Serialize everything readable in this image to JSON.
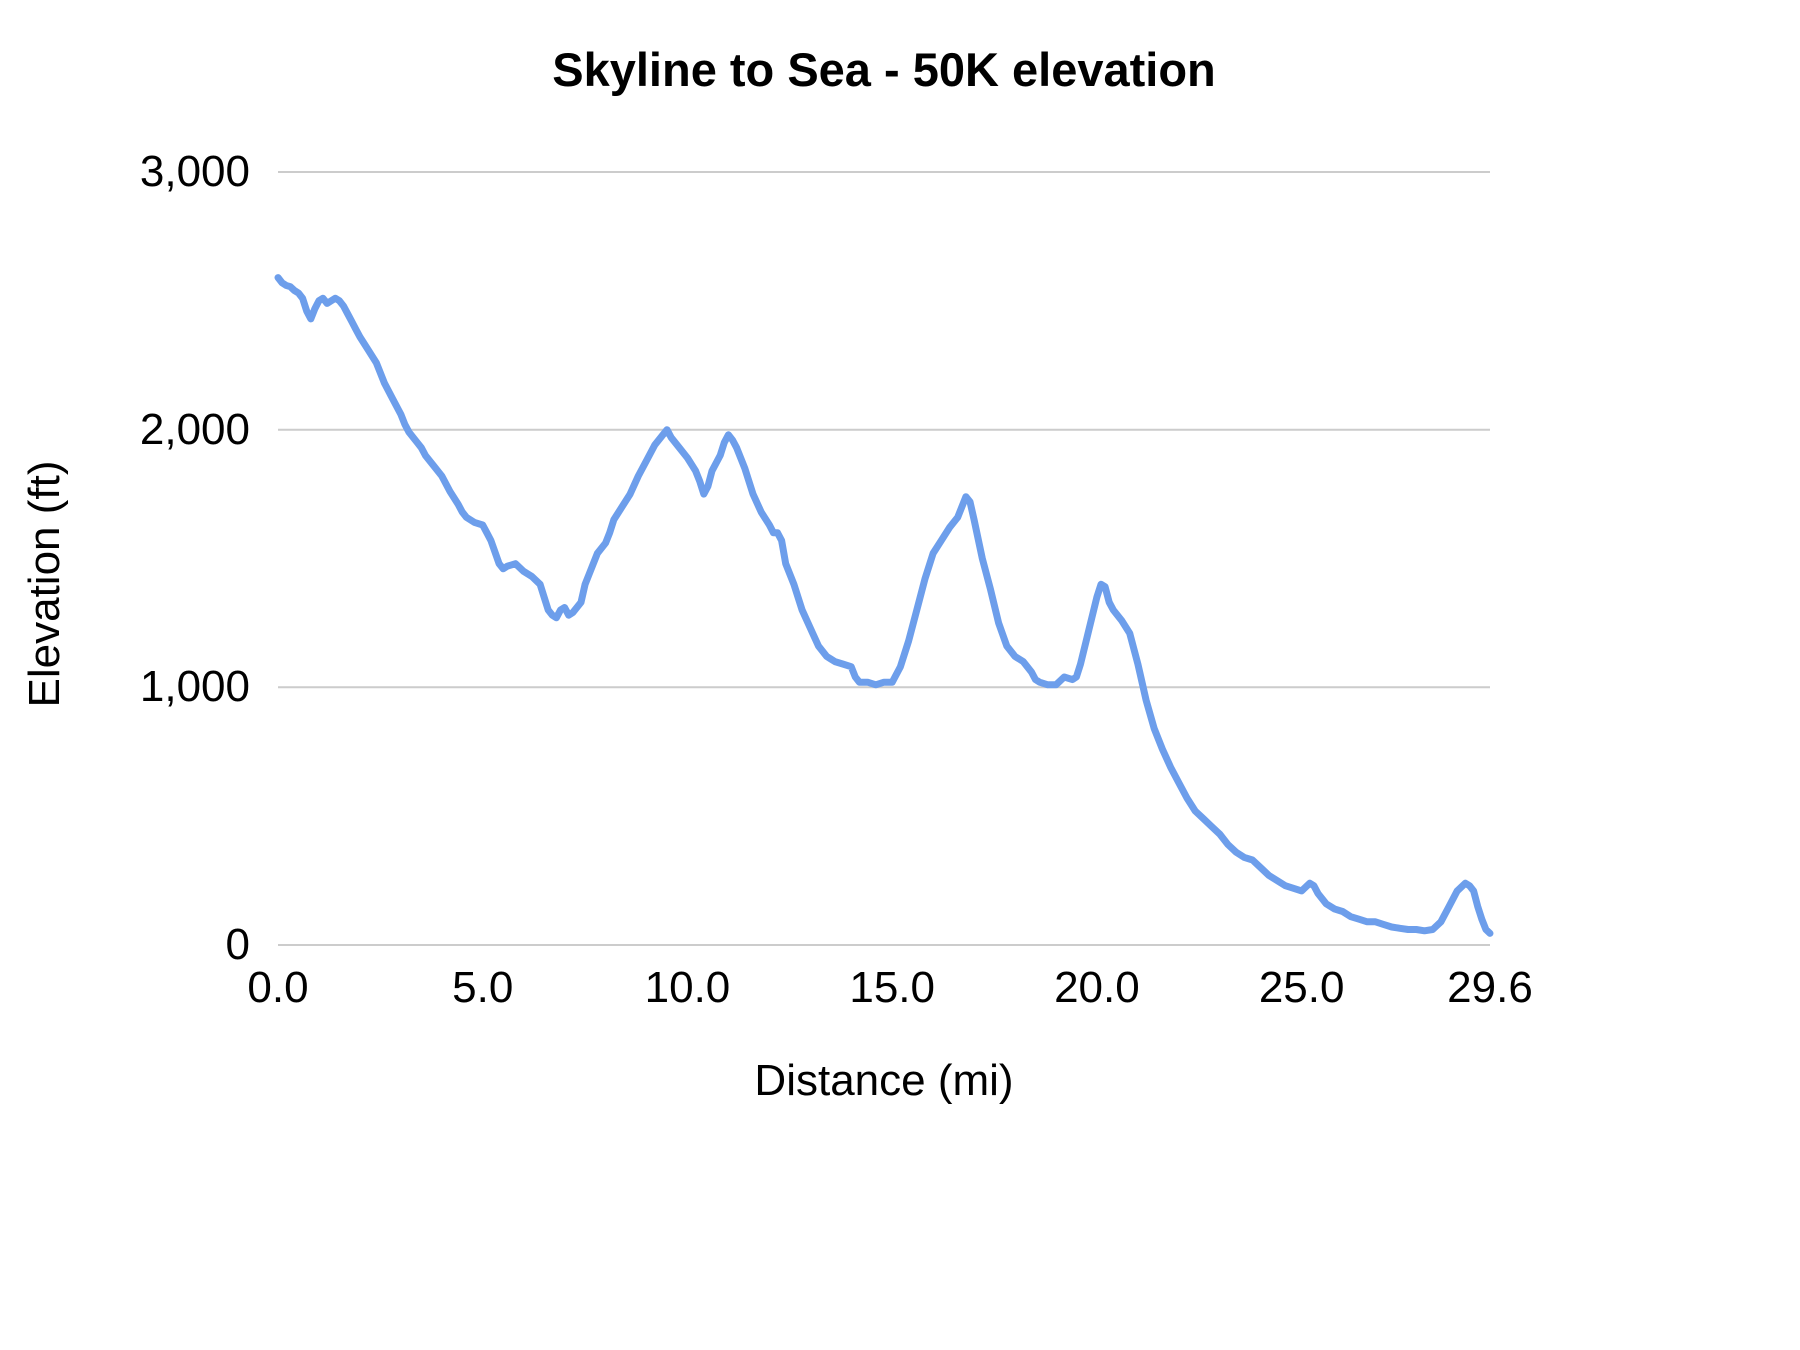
{
  "chart_data": {
    "type": "line",
    "title": "Skyline to Sea - 50K elevation",
    "xlabel": "Distance (mi)",
    "ylabel": "Elevation (ft)",
    "xlim": [
      0,
      29.6
    ],
    "ylim": [
      0,
      3000
    ],
    "grid": "horizontal",
    "legend": "none",
    "line_color": "#6d9eeb",
    "line_width": 7,
    "grid_color": "#cccccc",
    "xticks": [
      {
        "value": 0,
        "label": "0.0"
      },
      {
        "value": 5,
        "label": "5.0"
      },
      {
        "value": 10,
        "label": "10.0"
      },
      {
        "value": 15,
        "label": "15.0"
      },
      {
        "value": 20,
        "label": "20.0"
      },
      {
        "value": 25,
        "label": "25.0"
      },
      {
        "value": 29.6,
        "label": "29.6"
      }
    ],
    "yticks": [
      {
        "value": 0,
        "label": "0"
      },
      {
        "value": 1000,
        "label": "1,000"
      },
      {
        "value": 2000,
        "label": "2,000"
      },
      {
        "value": 3000,
        "label": "3,000"
      }
    ],
    "series": [
      {
        "name": "Elevation",
        "points": [
          [
            0.0,
            2590
          ],
          [
            0.1,
            2570
          ],
          [
            0.2,
            2560
          ],
          [
            0.3,
            2555
          ],
          [
            0.4,
            2540
          ],
          [
            0.5,
            2530
          ],
          [
            0.6,
            2510
          ],
          [
            0.7,
            2460
          ],
          [
            0.8,
            2430
          ],
          [
            0.9,
            2470
          ],
          [
            1.0,
            2500
          ],
          [
            1.1,
            2510
          ],
          [
            1.2,
            2490
          ],
          [
            1.3,
            2500
          ],
          [
            1.4,
            2510
          ],
          [
            1.5,
            2500
          ],
          [
            1.6,
            2480
          ],
          [
            1.7,
            2450
          ],
          [
            1.8,
            2420
          ],
          [
            1.9,
            2390
          ],
          [
            2.0,
            2360
          ],
          [
            2.2,
            2310
          ],
          [
            2.4,
            2260
          ],
          [
            2.6,
            2180
          ],
          [
            2.8,
            2120
          ],
          [
            3.0,
            2060
          ],
          [
            3.1,
            2020
          ],
          [
            3.2,
            1990
          ],
          [
            3.4,
            1950
          ],
          [
            3.5,
            1930
          ],
          [
            3.6,
            1900
          ],
          [
            3.8,
            1860
          ],
          [
            4.0,
            1820
          ],
          [
            4.2,
            1760
          ],
          [
            4.4,
            1710
          ],
          [
            4.5,
            1680
          ],
          [
            4.6,
            1660
          ],
          [
            4.8,
            1640
          ],
          [
            5.0,
            1630
          ],
          [
            5.1,
            1600
          ],
          [
            5.2,
            1570
          ],
          [
            5.4,
            1480
          ],
          [
            5.5,
            1460
          ],
          [
            5.6,
            1470
          ],
          [
            5.8,
            1480
          ],
          [
            6.0,
            1450
          ],
          [
            6.2,
            1430
          ],
          [
            6.4,
            1400
          ],
          [
            6.5,
            1350
          ],
          [
            6.6,
            1300
          ],
          [
            6.7,
            1280
          ],
          [
            6.8,
            1270
          ],
          [
            6.9,
            1300
          ],
          [
            7.0,
            1310
          ],
          [
            7.1,
            1280
          ],
          [
            7.2,
            1290
          ],
          [
            7.4,
            1330
          ],
          [
            7.5,
            1400
          ],
          [
            7.6,
            1440
          ],
          [
            7.8,
            1520
          ],
          [
            8.0,
            1560
          ],
          [
            8.1,
            1600
          ],
          [
            8.2,
            1650
          ],
          [
            8.4,
            1700
          ],
          [
            8.6,
            1750
          ],
          [
            8.8,
            1820
          ],
          [
            9.0,
            1880
          ],
          [
            9.2,
            1940
          ],
          [
            9.4,
            1980
          ],
          [
            9.5,
            2000
          ],
          [
            9.6,
            1970
          ],
          [
            9.8,
            1930
          ],
          [
            10.0,
            1890
          ],
          [
            10.2,
            1840
          ],
          [
            10.3,
            1800
          ],
          [
            10.4,
            1750
          ],
          [
            10.5,
            1780
          ],
          [
            10.6,
            1840
          ],
          [
            10.8,
            1900
          ],
          [
            10.9,
            1950
          ],
          [
            11.0,
            1980
          ],
          [
            11.1,
            1960
          ],
          [
            11.2,
            1930
          ],
          [
            11.4,
            1850
          ],
          [
            11.5,
            1800
          ],
          [
            11.6,
            1750
          ],
          [
            11.8,
            1680
          ],
          [
            12.0,
            1630
          ],
          [
            12.1,
            1600
          ],
          [
            12.2,
            1600
          ],
          [
            12.3,
            1570
          ],
          [
            12.4,
            1480
          ],
          [
            12.6,
            1400
          ],
          [
            12.8,
            1300
          ],
          [
            13.0,
            1230
          ],
          [
            13.2,
            1160
          ],
          [
            13.4,
            1120
          ],
          [
            13.5,
            1110
          ],
          [
            13.6,
            1100
          ],
          [
            13.8,
            1090
          ],
          [
            14.0,
            1080
          ],
          [
            14.1,
            1040
          ],
          [
            14.2,
            1020
          ],
          [
            14.4,
            1020
          ],
          [
            14.6,
            1010
          ],
          [
            14.8,
            1020
          ],
          [
            15.0,
            1020
          ],
          [
            15.2,
            1080
          ],
          [
            15.4,
            1180
          ],
          [
            15.6,
            1300
          ],
          [
            15.8,
            1420
          ],
          [
            16.0,
            1520
          ],
          [
            16.2,
            1570
          ],
          [
            16.4,
            1620
          ],
          [
            16.6,
            1660
          ],
          [
            16.8,
            1740
          ],
          [
            16.9,
            1720
          ],
          [
            17.0,
            1650
          ],
          [
            17.2,
            1500
          ],
          [
            17.4,
            1380
          ],
          [
            17.6,
            1250
          ],
          [
            17.8,
            1160
          ],
          [
            18.0,
            1120
          ],
          [
            18.2,
            1100
          ],
          [
            18.4,
            1060
          ],
          [
            18.5,
            1030
          ],
          [
            18.6,
            1020
          ],
          [
            18.8,
            1010
          ],
          [
            19.0,
            1010
          ],
          [
            19.2,
            1040
          ],
          [
            19.4,
            1030
          ],
          [
            19.5,
            1040
          ],
          [
            19.6,
            1090
          ],
          [
            19.8,
            1220
          ],
          [
            20.0,
            1350
          ],
          [
            20.1,
            1400
          ],
          [
            20.2,
            1390
          ],
          [
            20.3,
            1330
          ],
          [
            20.4,
            1300
          ],
          [
            20.6,
            1260
          ],
          [
            20.8,
            1210
          ],
          [
            21.0,
            1090
          ],
          [
            21.2,
            950
          ],
          [
            21.4,
            840
          ],
          [
            21.6,
            760
          ],
          [
            21.8,
            690
          ],
          [
            22.0,
            630
          ],
          [
            22.2,
            570
          ],
          [
            22.4,
            520
          ],
          [
            22.6,
            490
          ],
          [
            22.8,
            460
          ],
          [
            23.0,
            430
          ],
          [
            23.2,
            390
          ],
          [
            23.4,
            360
          ],
          [
            23.6,
            340
          ],
          [
            23.8,
            330
          ],
          [
            24.0,
            300
          ],
          [
            24.2,
            270
          ],
          [
            24.4,
            250
          ],
          [
            24.6,
            230
          ],
          [
            24.8,
            220
          ],
          [
            25.0,
            210
          ],
          [
            25.2,
            240
          ],
          [
            25.3,
            230
          ],
          [
            25.4,
            200
          ],
          [
            25.6,
            160
          ],
          [
            25.8,
            140
          ],
          [
            26.0,
            130
          ],
          [
            26.2,
            110
          ],
          [
            26.4,
            100
          ],
          [
            26.6,
            90
          ],
          [
            26.8,
            90
          ],
          [
            27.0,
            80
          ],
          [
            27.2,
            70
          ],
          [
            27.4,
            65
          ],
          [
            27.6,
            60
          ],
          [
            27.8,
            60
          ],
          [
            28.0,
            55
          ],
          [
            28.2,
            60
          ],
          [
            28.4,
            90
          ],
          [
            28.6,
            150
          ],
          [
            28.8,
            210
          ],
          [
            29.0,
            240
          ],
          [
            29.1,
            230
          ],
          [
            29.2,
            210
          ],
          [
            29.3,
            150
          ],
          [
            29.4,
            100
          ],
          [
            29.5,
            60
          ],
          [
            29.6,
            45
          ]
        ]
      }
    ]
  }
}
